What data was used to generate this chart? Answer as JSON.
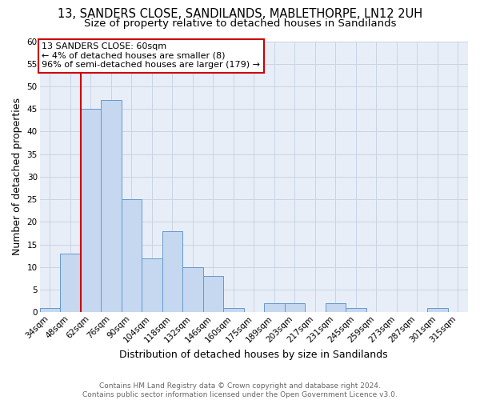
{
  "title": "13, SANDERS CLOSE, SANDILANDS, MABLETHORPE, LN12 2UH",
  "subtitle": "Size of property relative to detached houses in Sandilands",
  "xlabel": "Distribution of detached houses by size in Sandilands",
  "ylabel": "Number of detached properties",
  "categories": [
    "34sqm",
    "48sqm",
    "62sqm",
    "76sqm",
    "90sqm",
    "104sqm",
    "118sqm",
    "132sqm",
    "146sqm",
    "160sqm",
    "175sqm",
    "189sqm",
    "203sqm",
    "217sqm",
    "231sqm",
    "245sqm",
    "259sqm",
    "273sqm",
    "287sqm",
    "301sqm",
    "315sqm"
  ],
  "values": [
    1,
    13,
    45,
    47,
    25,
    12,
    18,
    10,
    8,
    1,
    0,
    2,
    2,
    0,
    2,
    1,
    0,
    0,
    0,
    1,
    0
  ],
  "bar_color": "#c5d8f0",
  "bar_edge_color": "#6699cc",
  "red_line_x": 1.5,
  "annotation_title": "13 SANDERS CLOSE: 60sqm",
  "annotation_line1": "← 4% of detached houses are smaller (8)",
  "annotation_line2": "96% of semi-detached houses are larger (179) →",
  "annotation_box_facecolor": "#ffffff",
  "annotation_border_color": "#cc0000",
  "red_line_color": "#cc0000",
  "ylim": [
    0,
    60
  ],
  "yticks": [
    0,
    5,
    10,
    15,
    20,
    25,
    30,
    35,
    40,
    45,
    50,
    55,
    60
  ],
  "footer_line1": "Contains HM Land Registry data © Crown copyright and database right 2024.",
  "footer_line2": "Contains public sector information licensed under the Open Government Licence v3.0.",
  "bg_color": "#ffffff",
  "plot_bg_color": "#e8eef8",
  "grid_color": "#c8d4e4",
  "title_fontsize": 10.5,
  "subtitle_fontsize": 9.5,
  "xlabel_fontsize": 9,
  "ylabel_fontsize": 9,
  "tick_fontsize": 7.5,
  "annotation_fontsize": 8,
  "footer_fontsize": 6.5
}
